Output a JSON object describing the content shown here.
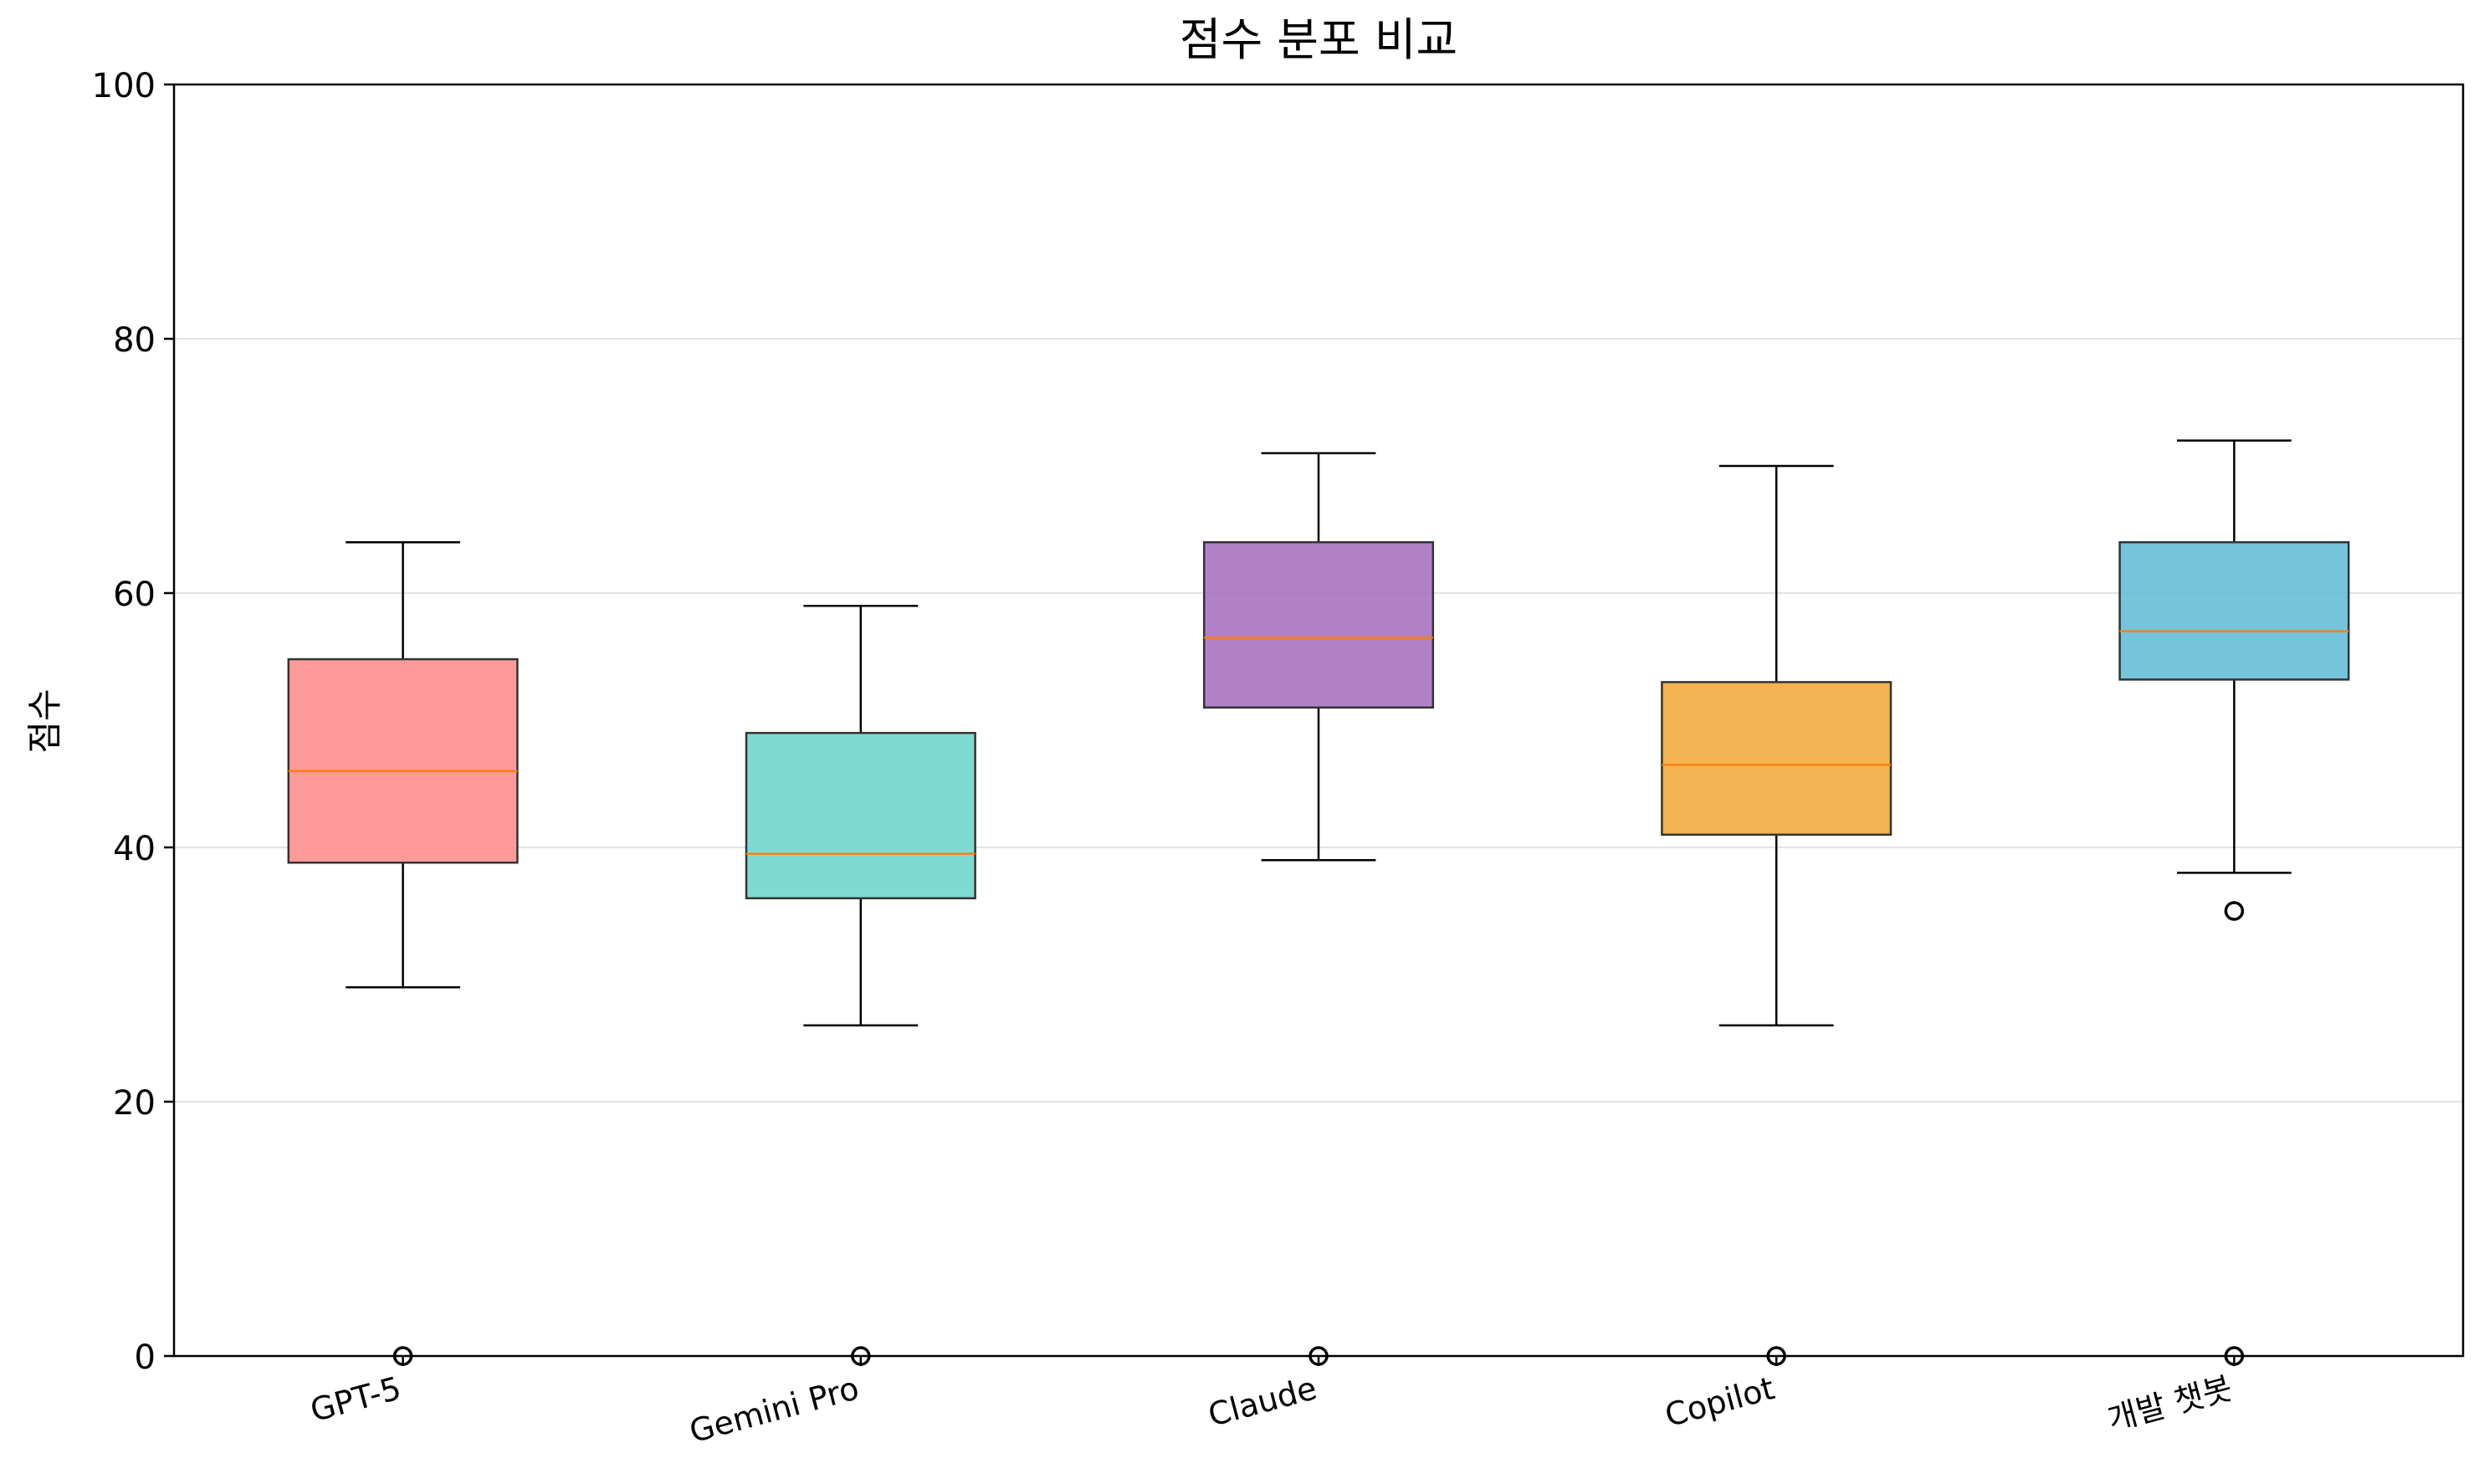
{
  "chart_data": {
    "type": "box",
    "title": "점수 분포 비교",
    "xlabel": "",
    "ylabel": "점수",
    "ylim": [
      0,
      100
    ],
    "yticks": [
      0,
      20,
      40,
      60,
      80,
      100
    ],
    "grid": "y",
    "categories": [
      "GPT-5",
      "Gemini Pro",
      "Claude",
      "Copilot",
      "개발 챗봇"
    ],
    "boxes": [
      {
        "label": "GPT-5",
        "whisker_low": 29,
        "q1": 38.8,
        "median": 46,
        "q3": 54.8,
        "whisker_high": 64,
        "outliers": [
          0
        ],
        "color": "#ff8c8c"
      },
      {
        "label": "Gemini Pro",
        "whisker_low": 26,
        "q1": 36,
        "median": 39.5,
        "q3": 49,
        "whisker_high": 59,
        "outliers": [
          0
        ],
        "color": "#6dd6cc"
      },
      {
        "label": "Claude",
        "whisker_low": 39,
        "q1": 51,
        "median": 56.5,
        "q3": 64,
        "whisker_high": 71,
        "outliers": [
          0
        ],
        "color": "#a66fbf"
      },
      {
        "label": "Copilot",
        "whisker_low": 26,
        "q1": 41,
        "median": 46.5,
        "q3": 53,
        "whisker_high": 70,
        "outliers": [
          0
        ],
        "color": "#f3a93a"
      },
      {
        "label": "개발 챗봇",
        "whisker_low": 38,
        "q1": 53.2,
        "median": 57,
        "q3": 64,
        "whisker_high": 72,
        "outliers": [
          35,
          0
        ],
        "color": "#62bcd6"
      }
    ],
    "median_color": "#ff7f0e"
  }
}
